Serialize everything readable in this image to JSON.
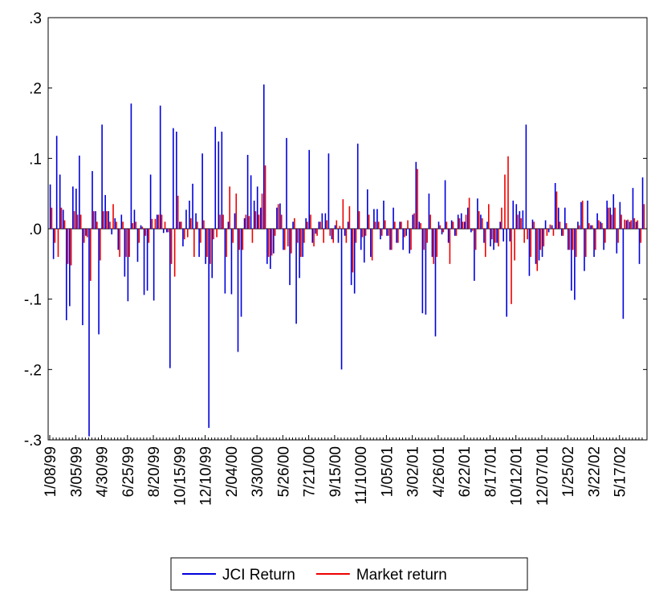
{
  "chart_data": {
    "type": "bar",
    "categories": [
      "1/08/99",
      null,
      null,
      null,
      null,
      null,
      null,
      null,
      "3/05/99",
      null,
      null,
      null,
      null,
      null,
      null,
      null,
      "4/30/99",
      null,
      null,
      null,
      null,
      null,
      null,
      null,
      "6/25/99",
      null,
      null,
      null,
      null,
      null,
      null,
      null,
      "8/20/99",
      null,
      null,
      null,
      null,
      null,
      null,
      null,
      "10/15/99",
      null,
      null,
      null,
      null,
      null,
      null,
      null,
      "12/10/99",
      null,
      null,
      null,
      null,
      null,
      null,
      null,
      "2/04/00",
      null,
      null,
      null,
      null,
      null,
      null,
      null,
      "3/30/00",
      null,
      null,
      null,
      null,
      null,
      null,
      null,
      "5/26/00",
      null,
      null,
      null,
      null,
      null,
      null,
      null,
      "7/21/00",
      null,
      null,
      null,
      null,
      null,
      null,
      null,
      "9/15/00",
      null,
      null,
      null,
      null,
      null,
      null,
      null,
      "11/10/00",
      null,
      null,
      null,
      null,
      null,
      null,
      null,
      "1/05/01",
      null,
      null,
      null,
      null,
      null,
      null,
      null,
      "3/02/01",
      null,
      null,
      null,
      null,
      null,
      null,
      null,
      "4/26/01",
      null,
      null,
      null,
      null,
      null,
      null,
      null,
      "6/22/01",
      null,
      null,
      null,
      null,
      null,
      null,
      null,
      "8/17/01",
      null,
      null,
      null,
      null,
      null,
      null,
      null,
      "10/12/01",
      null,
      null,
      null,
      null,
      null,
      null,
      null,
      "12/07/01",
      null,
      null,
      null,
      null,
      null,
      null,
      null,
      "1/25/02",
      null,
      null,
      null,
      null,
      null,
      null,
      null,
      "3/22/02",
      null,
      null,
      null,
      null,
      null,
      null,
      null,
      "5/17/02",
      null,
      null,
      null,
      null,
      null,
      null,
      null
    ],
    "series": [
      {
        "name": "JCI Return",
        "color": "#0000dd",
        "values": [
          0.063,
          -0.043,
          0.132,
          0.077,
          0.027,
          -0.13,
          -0.11,
          0.06,
          0.057,
          0.104,
          -0.137,
          -0.01,
          -0.295,
          0.082,
          0.025,
          -0.15,
          0.148,
          0.048,
          0.025,
          -0.008,
          0.015,
          -0.03,
          0.02,
          -0.068,
          -0.103,
          0.178,
          0.027,
          -0.047,
          0.005,
          -0.094,
          -0.088,
          0.077,
          -0.102,
          0.02,
          0.175,
          -0.006,
          -0.005,
          -0.198,
          0.143,
          0.138,
          0.01,
          -0.025,
          0.027,
          0.04,
          0.064,
          0.022,
          -0.04,
          0.107,
          -0.05,
          -0.283,
          -0.07,
          0.145,
          0.124,
          0.138,
          -0.092,
          0.01,
          -0.093,
          0.022,
          -0.175,
          -0.125,
          0.015,
          0.105,
          0.076,
          0.04,
          0.06,
          0.03,
          0.205,
          -0.05,
          -0.057,
          -0.035,
          0.03,
          0.036,
          -0.03,
          0.129,
          -0.08,
          0.01,
          -0.135,
          -0.07,
          -0.04,
          0.015,
          0.112,
          -0.02,
          -0.007,
          0.01,
          0.022,
          0.022,
          0.107,
          -0.015,
          0.005,
          -0.02,
          -0.2,
          -0.01,
          0.01,
          -0.08,
          -0.092,
          0.121,
          -0.03,
          -0.048,
          0.056,
          -0.04,
          0.028,
          0.028,
          -0.015,
          0.04,
          -0.01,
          -0.03,
          0.03,
          -0.02,
          0.01,
          -0.03,
          -0.01,
          -0.035,
          0.02,
          0.095,
          0.01,
          -0.12,
          -0.122,
          0.05,
          -0.04,
          -0.153,
          0.01,
          -0.008,
          0.069,
          -0.02,
          0.012,
          -0.01,
          0.02,
          0.022,
          0.01,
          0.03,
          -0.005,
          -0.074,
          0.043,
          0.02,
          -0.02,
          0.01,
          -0.025,
          -0.03,
          -0.02,
          0.01,
          -0.018,
          -0.125,
          -0.018,
          0.04,
          0.035,
          0.025,
          0.026,
          0.148,
          -0.067,
          0.013,
          -0.05,
          -0.045,
          -0.04,
          0.012,
          -0.005,
          0.005,
          0.065,
          0.03,
          -0.01,
          0.03,
          -0.03,
          -0.088,
          -0.101,
          0.01,
          0.038,
          -0.06,
          0.04,
          0.005,
          -0.04,
          0.022,
          0.01,
          -0.03,
          0.04,
          0.03,
          0.049,
          -0.035,
          0.038,
          -0.128,
          0.012,
          0.01,
          0.058,
          0.01,
          -0.05,
          0.073
        ]
      },
      {
        "name": "Market return",
        "color": "#ee0000",
        "values": [
          0.03,
          -0.02,
          -0.04,
          0.03,
          0.012,
          -0.05,
          -0.052,
          0.025,
          0.02,
          0.02,
          -0.02,
          -0.012,
          -0.074,
          0.025,
          0.01,
          -0.045,
          0.025,
          0.025,
          0.01,
          0.035,
          0.01,
          -0.04,
          0.01,
          -0.04,
          -0.04,
          0.008,
          0.01,
          -0.02,
          0.003,
          -0.01,
          -0.02,
          0.014,
          0.014,
          0.02,
          0.02,
          0.01,
          -0.005,
          -0.05,
          -0.068,
          0.047,
          0.01,
          -0.015,
          -0.012,
          0.015,
          -0.04,
          0.01,
          -0.02,
          0.012,
          -0.04,
          -0.05,
          -0.015,
          -0.012,
          0.02,
          0.02,
          -0.04,
          0.06,
          -0.02,
          0.05,
          -0.03,
          -0.03,
          0.02,
          0.018,
          -0.02,
          0.025,
          0.02,
          0.05,
          0.09,
          -0.04,
          -0.038,
          -0.01,
          0.035,
          0.02,
          -0.03,
          -0.025,
          -0.035,
          0.015,
          -0.02,
          -0.04,
          -0.02,
          0.01,
          0.02,
          -0.025,
          -0.01,
          0.01,
          -0.02,
          0.012,
          -0.01,
          -0.02,
          0.012,
          0.004,
          0.042,
          -0.02,
          0.032,
          -0.062,
          -0.02,
          0.025,
          -0.012,
          -0.01,
          0.02,
          -0.045,
          0.01,
          0.01,
          -0.01,
          0.012,
          -0.01,
          -0.03,
          0.01,
          -0.02,
          0.01,
          -0.012,
          0.012,
          -0.03,
          0.022,
          0.085,
          0.008,
          -0.03,
          -0.02,
          0.02,
          -0.05,
          -0.04,
          0.005,
          -0.005,
          0.01,
          -0.05,
          0.01,
          -0.01,
          0.015,
          0.01,
          0.02,
          0.044,
          -0.003,
          -0.03,
          0.025,
          0.015,
          -0.04,
          0.035,
          -0.015,
          -0.02,
          -0.025,
          0.03,
          0.077,
          0.103,
          -0.107,
          -0.045,
          0.02,
          0.015,
          -0.02,
          -0.015,
          -0.04,
          0.01,
          -0.06,
          -0.03,
          -0.025,
          -0.01,
          0.006,
          -0.01,
          0.053,
          0.01,
          -0.01,
          0.008,
          -0.03,
          -0.03,
          -0.04,
          0.005,
          0.04,
          -0.04,
          0.008,
          0.005,
          -0.03,
          0.012,
          0.008,
          -0.02,
          0.03,
          0.02,
          0.03,
          -0.02,
          0.02,
          0.013,
          0.013,
          0.012,
          0.015,
          0.012,
          -0.02,
          0.035
        ]
      }
    ],
    "ylim": [
      -0.3,
      0.3
    ],
    "yticks": [
      {
        "value": -0.3,
        "label": "-.3"
      },
      {
        "value": -0.2,
        "label": "-.2"
      },
      {
        "value": -0.1,
        "label": "-.1"
      },
      {
        "value": 0,
        "label": ".0"
      },
      {
        "value": 0.1,
        "label": ".1"
      },
      {
        "value": 0.2,
        "label": ".2"
      },
      {
        "value": 0.3,
        "label": ".3"
      }
    ],
    "legend": "bottom"
  }
}
